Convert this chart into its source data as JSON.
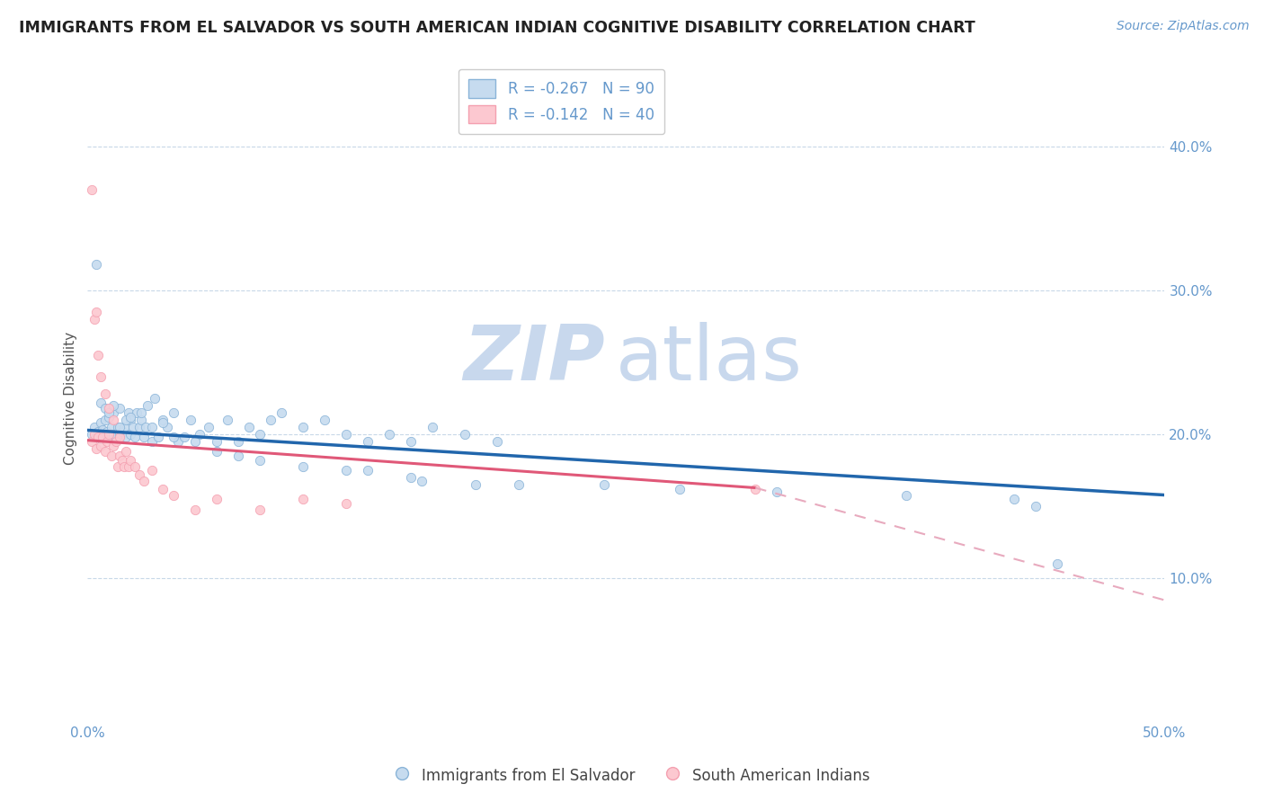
{
  "title": "IMMIGRANTS FROM EL SALVADOR VS SOUTH AMERICAN INDIAN COGNITIVE DISABILITY CORRELATION CHART",
  "source_text": "Source: ZipAtlas.com",
  "ylabel": "Cognitive Disability",
  "xlim": [
    0.0,
    0.5
  ],
  "ylim": [
    0.0,
    0.45
  ],
  "yticks": [
    0.1,
    0.2,
    0.3,
    0.4
  ],
  "ytick_labels": [
    "10.0%",
    "20.0%",
    "30.0%",
    "40.0%"
  ],
  "xticks": [
    0.0,
    0.1,
    0.2,
    0.3,
    0.4,
    0.5
  ],
  "xtick_labels": [
    "0.0%",
    "",
    "",
    "",
    "",
    "50.0%"
  ],
  "blue_R": -0.267,
  "blue_N": 90,
  "pink_R": -0.142,
  "pink_N": 40,
  "blue_color": "#8ab4d8",
  "pink_color": "#f4a0b0",
  "blue_fill": "#c6dbef",
  "pink_fill": "#fcc8d0",
  "trend_blue": "#2166ac",
  "trend_pink": "#e05878",
  "trend_pink_dash": "#e8aabe",
  "watermark_color": "#c8d8ed",
  "legend_label_blue": "Immigrants from El Salvador",
  "legend_label_pink": "South American Indians",
  "title_color": "#222222",
  "axis_color": "#6699cc",
  "blue_line_start_y": 0.203,
  "blue_line_end_y": 0.158,
  "pink_line_start_y": 0.196,
  "pink_line_solid_end_x": 0.31,
  "pink_line_solid_end_y": 0.163,
  "pink_line_dash_end_y": 0.085,
  "blue_x": [
    0.002,
    0.003,
    0.004,
    0.005,
    0.006,
    0.006,
    0.007,
    0.008,
    0.008,
    0.009,
    0.01,
    0.01,
    0.011,
    0.012,
    0.012,
    0.013,
    0.014,
    0.015,
    0.015,
    0.016,
    0.017,
    0.018,
    0.019,
    0.02,
    0.02,
    0.021,
    0.022,
    0.023,
    0.024,
    0.025,
    0.026,
    0.027,
    0.028,
    0.03,
    0.031,
    0.033,
    0.035,
    0.037,
    0.04,
    0.042,
    0.045,
    0.048,
    0.052,
    0.056,
    0.06,
    0.065,
    0.07,
    0.075,
    0.08,
    0.085,
    0.09,
    0.1,
    0.11,
    0.12,
    0.13,
    0.14,
    0.15,
    0.16,
    0.175,
    0.19,
    0.004,
    0.006,
    0.008,
    0.01,
    0.012,
    0.015,
    0.018,
    0.02,
    0.025,
    0.03,
    0.035,
    0.04,
    0.05,
    0.06,
    0.07,
    0.08,
    0.1,
    0.12,
    0.15,
    0.18,
    0.13,
    0.155,
    0.2,
    0.24,
    0.275,
    0.32,
    0.38,
    0.43,
    0.44,
    0.45
  ],
  "blue_y": [
    0.2,
    0.205,
    0.198,
    0.202,
    0.197,
    0.208,
    0.203,
    0.198,
    0.21,
    0.202,
    0.198,
    0.212,
    0.205,
    0.2,
    0.215,
    0.198,
    0.205,
    0.2,
    0.218,
    0.202,
    0.205,
    0.198,
    0.215,
    0.2,
    0.21,
    0.205,
    0.198,
    0.215,
    0.205,
    0.21,
    0.198,
    0.205,
    0.22,
    0.195,
    0.225,
    0.198,
    0.21,
    0.205,
    0.215,
    0.195,
    0.198,
    0.21,
    0.2,
    0.205,
    0.195,
    0.21,
    0.195,
    0.205,
    0.2,
    0.21,
    0.215,
    0.205,
    0.21,
    0.2,
    0.195,
    0.2,
    0.195,
    0.205,
    0.2,
    0.195,
    0.318,
    0.222,
    0.218,
    0.215,
    0.22,
    0.205,
    0.21,
    0.212,
    0.215,
    0.205,
    0.208,
    0.198,
    0.195,
    0.188,
    0.185,
    0.182,
    0.178,
    0.175,
    0.17,
    0.165,
    0.175,
    0.168,
    0.165,
    0.165,
    0.162,
    0.16,
    0.158,
    0.155,
    0.15,
    0.11
  ],
  "pink_x": [
    0.002,
    0.003,
    0.004,
    0.005,
    0.006,
    0.007,
    0.008,
    0.009,
    0.01,
    0.011,
    0.012,
    0.013,
    0.014,
    0.015,
    0.016,
    0.017,
    0.018,
    0.019,
    0.02,
    0.022,
    0.024,
    0.026,
    0.03,
    0.035,
    0.04,
    0.05,
    0.06,
    0.08,
    0.1,
    0.12,
    0.002,
    0.003,
    0.004,
    0.005,
    0.006,
    0.008,
    0.01,
    0.012,
    0.015,
    0.31
  ],
  "pink_y": [
    0.195,
    0.2,
    0.19,
    0.198,
    0.192,
    0.198,
    0.188,
    0.195,
    0.2,
    0.185,
    0.192,
    0.195,
    0.178,
    0.185,
    0.182,
    0.178,
    0.188,
    0.178,
    0.182,
    0.178,
    0.172,
    0.168,
    0.175,
    0.162,
    0.158,
    0.148,
    0.155,
    0.148,
    0.155,
    0.152,
    0.37,
    0.28,
    0.285,
    0.255,
    0.24,
    0.228,
    0.218,
    0.21,
    0.198,
    0.162
  ]
}
